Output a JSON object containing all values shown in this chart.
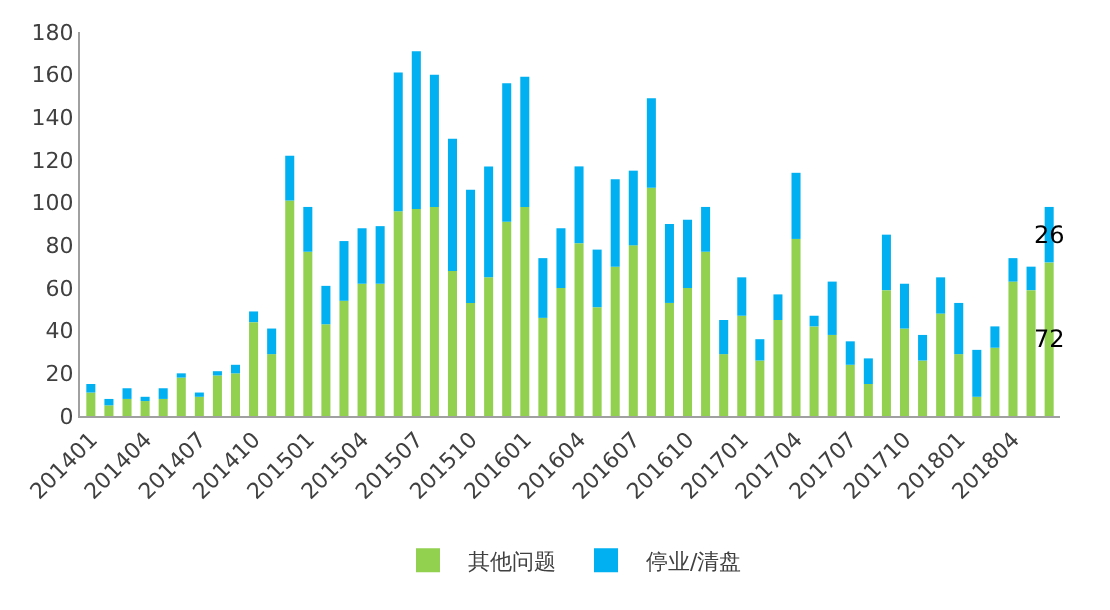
{
  "chart_data": {
    "type": "bar",
    "stacked": true,
    "categories": [
      "201401",
      null,
      null,
      "201404",
      null,
      null,
      "201407",
      null,
      null,
      "201410",
      null,
      null,
      "201501",
      null,
      null,
      "201504",
      null,
      null,
      "201507",
      null,
      null,
      "201510",
      null,
      null,
      "201601",
      null,
      null,
      "201604",
      null,
      null,
      "201607",
      null,
      null,
      "201610",
      null,
      null,
      "201701",
      null,
      null,
      "201704",
      null,
      null,
      "201707",
      null,
      null,
      "201710",
      null,
      null,
      "201801",
      null,
      null,
      "201804",
      null,
      null
    ],
    "series": [
      {
        "name": "其他问题",
        "color": "#92d050",
        "values": [
          11,
          5,
          8,
          7,
          8,
          18,
          9,
          19,
          20,
          44,
          29,
          101,
          77,
          43,
          54,
          62,
          62,
          96,
          97,
          98,
          68,
          53,
          65,
          91,
          98,
          46,
          60,
          81,
          51,
          70,
          80,
          107,
          53,
          60,
          77,
          29,
          47,
          26,
          45,
          83,
          42,
          38,
          24,
          15,
          59,
          41,
          26,
          48,
          29,
          9,
          32,
          63,
          59,
          72
        ],
        "value_labels": [
          null,
          null,
          null,
          null,
          null,
          null,
          null,
          null,
          null,
          null,
          null,
          null,
          null,
          null,
          null,
          null,
          null,
          null,
          null,
          null,
          null,
          null,
          null,
          null,
          null,
          null,
          null,
          null,
          null,
          null,
          null,
          null,
          null,
          null,
          null,
          null,
          null,
          null,
          null,
          null,
          null,
          null,
          null,
          null,
          null,
          null,
          null,
          null,
          null,
          null,
          null,
          null,
          null,
          "72"
        ]
      },
      {
        "name": "停业/清盘",
        "color": "#00b0f0",
        "values": [
          4,
          3,
          5,
          2,
          5,
          2,
          2,
          2,
          4,
          5,
          12,
          21,
          21,
          18,
          28,
          26,
          27,
          65,
          74,
          62,
          62,
          53,
          52,
          65,
          61,
          28,
          28,
          36,
          27,
          41,
          35,
          42,
          37,
          32,
          21,
          16,
          18,
          10,
          12,
          31,
          5,
          25,
          11,
          12,
          26,
          21,
          12,
          17,
          24,
          22,
          10,
          11,
          11,
          26
        ],
        "value_labels": [
          null,
          null,
          null,
          null,
          null,
          null,
          null,
          null,
          null,
          null,
          null,
          null,
          null,
          null,
          null,
          null,
          null,
          null,
          null,
          null,
          null,
          null,
          null,
          null,
          null,
          null,
          null,
          null,
          null,
          null,
          null,
          null,
          null,
          null,
          null,
          null,
          null,
          null,
          null,
          null,
          null,
          null,
          null,
          null,
          null,
          null,
          null,
          null,
          null,
          null,
          null,
          null,
          null,
          "26"
        ]
      }
    ],
    "ylim": [
      0,
      180
    ],
    "yticks": [
      0,
      20,
      40,
      60,
      80,
      100,
      120,
      140,
      160,
      180
    ],
    "grid": false,
    "legend": "bottom"
  }
}
